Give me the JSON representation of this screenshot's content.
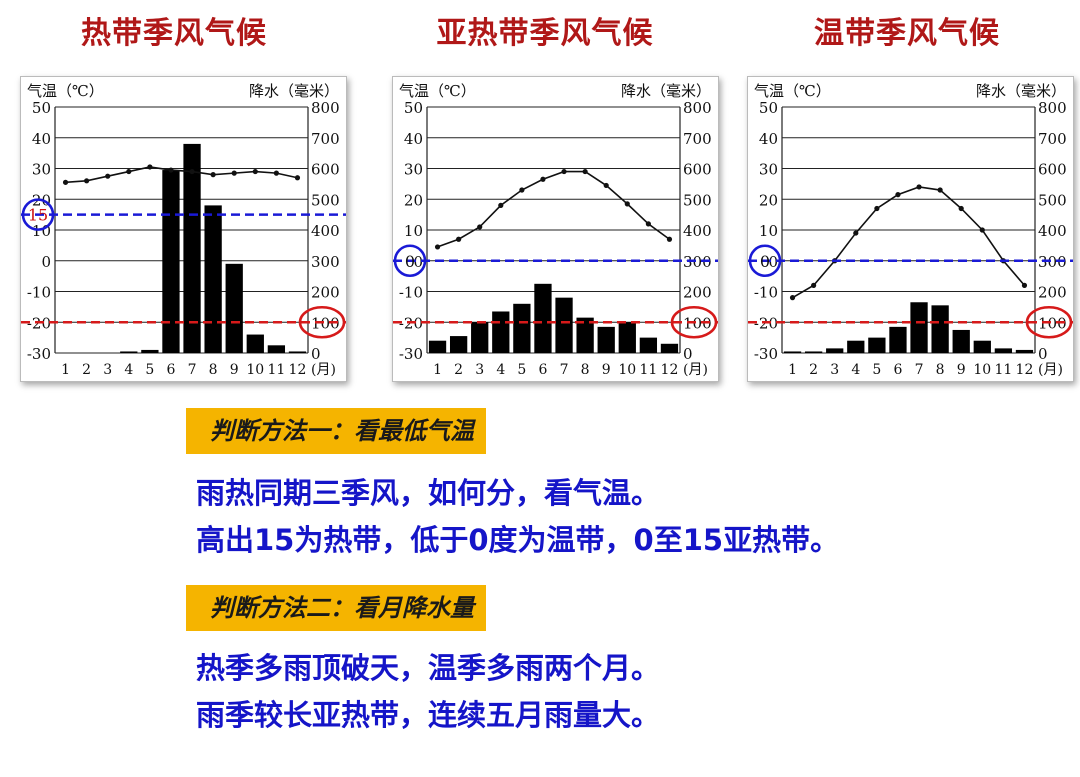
{
  "chart_data": [
    {
      "type": "bar",
      "title": "热带季风气候",
      "y_left_label": "气温（℃）",
      "y_right_label": "降水（毫米）",
      "x_unit_label": "(月)",
      "left_ticks": [
        "50",
        "40",
        "30",
        "20",
        "10",
        "0",
        "-10",
        "-20",
        "-30"
      ],
      "right_ticks": [
        "800",
        "700",
        "600",
        "500",
        "400",
        "300",
        "200",
        "100",
        "0"
      ],
      "x_ticks": [
        "1",
        "2",
        "3",
        "4",
        "5",
        "6",
        "7",
        "8",
        "9",
        "10",
        "11",
        "12"
      ],
      "ylim_temperature": [
        -30,
        50
      ],
      "ylim_precipitation": [
        0,
        800
      ],
      "series": [
        {
          "type": "line",
          "values": [
            25.5,
            26,
            27.5,
            29,
            30.5,
            29.5,
            29,
            28,
            28.5,
            29,
            28.5,
            27
          ]
        },
        {
          "type": "bar",
          "values": [
            0,
            0,
            0,
            5,
            10,
            595,
            680,
            480,
            290,
            60,
            25,
            5
          ]
        }
      ],
      "reference_lines": [
        {
          "axis": "temperature",
          "value": 15,
          "color": "#1a1ad6",
          "label": "15"
        },
        {
          "axis": "precipitation",
          "value": 100,
          "color": "#d61a1a",
          "label": "100"
        }
      ]
    },
    {
      "type": "bar",
      "title": "亚热带季风气候",
      "y_left_label": "气温（℃）",
      "y_right_label": "降水（毫米）",
      "x_unit_label": "(月)",
      "left_ticks": [
        "50",
        "40",
        "30",
        "20",
        "10",
        "0",
        "-10",
        "-20",
        "-30"
      ],
      "right_ticks": [
        "800",
        "700",
        "600",
        "500",
        "400",
        "300",
        "200",
        "100",
        "0"
      ],
      "x_ticks": [
        "1",
        "2",
        "3",
        "4",
        "5",
        "6",
        "7",
        "8",
        "9",
        "10",
        "11",
        "12"
      ],
      "ylim_temperature": [
        -30,
        50
      ],
      "ylim_precipitation": [
        0,
        800
      ],
      "series": [
        {
          "type": "line",
          "values": [
            4.5,
            7,
            11,
            18,
            23,
            26.5,
            29,
            29,
            24.5,
            18.5,
            12,
            7
          ]
        },
        {
          "type": "bar",
          "values": [
            40,
            55,
            100,
            135,
            160,
            225,
            180,
            115,
            85,
            100,
            50,
            30
          ]
        }
      ],
      "reference_lines": [
        {
          "axis": "temperature",
          "value": 0,
          "color": "#1a1ad6",
          "label": "0"
        },
        {
          "axis": "precipitation",
          "value": 100,
          "color": "#d61a1a",
          "label": "100"
        }
      ]
    },
    {
      "type": "bar",
      "title": "温带季风气候",
      "y_left_label": "气温（℃）",
      "y_right_label": "降水（毫米）",
      "x_unit_label": "(月)",
      "left_ticks": [
        "50",
        "40",
        "30",
        "20",
        "10",
        "0",
        "-10",
        "-20",
        "-30"
      ],
      "right_ticks": [
        "800",
        "700",
        "600",
        "500",
        "400",
        "300",
        "200",
        "100",
        "0"
      ],
      "x_ticks": [
        "1",
        "2",
        "3",
        "4",
        "5",
        "6",
        "7",
        "8",
        "9",
        "10",
        "11",
        "12"
      ],
      "ylim_temperature": [
        -30,
        50
      ],
      "ylim_precipitation": [
        0,
        800
      ],
      "series": [
        {
          "type": "line",
          "values": [
            -12,
            -8,
            0,
            9,
            17,
            21.5,
            24,
            23,
            17,
            10,
            0,
            -8
          ]
        },
        {
          "type": "bar",
          "values": [
            5,
            5,
            15,
            40,
            50,
            85,
            165,
            155,
            75,
            40,
            15,
            10
          ]
        }
      ],
      "reference_lines": [
        {
          "axis": "temperature",
          "value": 0,
          "color": "#1a1ad6",
          "label": "0"
        },
        {
          "axis": "precipitation",
          "value": 100,
          "color": "#d61a1a",
          "label": "100"
        }
      ]
    }
  ],
  "method1": {
    "banner": "判断方法一：看最低气温",
    "line1": "雨热同期三季风，如何分，看气温。",
    "line2": "高出15为热带，低于0度为温带，0至15亚热带。"
  },
  "method2": {
    "banner": "判断方法二：看月降水量",
    "line1": "热季多雨顶破天，温季多雨两个月。",
    "line2": "雨季较长亚热带，连续五月雨量大。"
  },
  "colors": {
    "title": "#b01818",
    "rule_text": "#1515c8",
    "banner_bg": "#f5b400",
    "temperature_marker": "#1a1ad6",
    "precipitation_marker": "#d61a1a"
  }
}
